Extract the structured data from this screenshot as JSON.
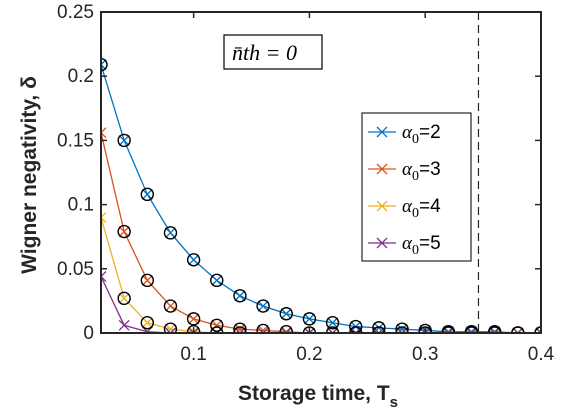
{
  "chart_data": {
    "type": "line",
    "xlabel": "Storage time, T",
    "xlabel_subscript": "s",
    "ylabel": "Wigner negativity, δ",
    "xlim": [
      0.02,
      0.4
    ],
    "ylim": [
      0,
      0.25
    ],
    "xticks": [
      0.1,
      0.2,
      0.3,
      0.4
    ],
    "xtick_labels": [
      "0.1",
      "0.2",
      "0.3",
      "0.4"
    ],
    "yticks": [
      0,
      0.05,
      0.1,
      0.15,
      0.2,
      0.25
    ],
    "ytick_labels": [
      "0",
      "0.05",
      "0.1",
      "0.15",
      "0.2",
      "0.25"
    ],
    "grid": false,
    "legend_position": "right",
    "annotation": "n̄th = 0",
    "vline_x": 0.346,
    "x": [
      0.02,
      0.04,
      0.06,
      0.08,
      0.1,
      0.12,
      0.14,
      0.16,
      0.18,
      0.2,
      0.22,
      0.24,
      0.26,
      0.28,
      0.3,
      0.32,
      0.34,
      0.36,
      0.38,
      0.4
    ],
    "series": [
      {
        "name": "α0=2",
        "label_main": "α",
        "label_sub": "0",
        "label_rest": "=2",
        "color": "#0072BD",
        "values": [
          0.209,
          0.15,
          0.108,
          0.078,
          0.057,
          0.041,
          0.029,
          0.021,
          0.015,
          0.011,
          0.008,
          0.005,
          0.004,
          0.003,
          0.002,
          0.001,
          0.001,
          0.001,
          0.0,
          0.0
        ]
      },
      {
        "name": "α0=3",
        "label_main": "α",
        "label_sub": "0",
        "label_rest": "=3",
        "color": "#D95319",
        "values": [
          0.156,
          0.079,
          0.041,
          0.021,
          0.011,
          0.006,
          0.003,
          0.002,
          0.001,
          0.0,
          0.0,
          0.0,
          0.0,
          0.0,
          0.0,
          0.0,
          0.0,
          0.0,
          0.0,
          0.0
        ]
      },
      {
        "name": "α0=4",
        "label_main": "α",
        "label_sub": "0",
        "label_rest": "=4",
        "color": "#EDB120",
        "values": [
          0.09,
          0.027,
          0.008,
          0.003,
          0.001,
          0.0,
          0.0,
          0.0,
          0.0,
          0.0,
          0.0,
          0.0,
          0.0,
          0.0,
          0.0,
          0.0,
          0.0,
          0.0,
          0.0,
          0.0
        ]
      },
      {
        "name": "α0=5",
        "label_main": "α",
        "label_sub": "0",
        "label_rest": "=5",
        "color": "#7E2F8E",
        "values": [
          0.044,
          0.006,
          0.001,
          0.0,
          0.0,
          0.0,
          0.0,
          0.0,
          0.0,
          0.0,
          0.0,
          0.0,
          0.0,
          0.0,
          0.0,
          0.0,
          0.0,
          0.0,
          0.0,
          0.0
        ]
      }
    ],
    "circle_markers": [
      {
        "x": [
          0.02,
          0.04,
          0.06,
          0.08,
          0.1,
          0.12,
          0.14,
          0.16,
          0.18,
          0.2,
          0.22,
          0.24,
          0.26,
          0.28,
          0.3,
          0.32,
          0.34,
          0.36,
          0.38,
          0.4
        ],
        "values": [
          0.209,
          0.15,
          0.108,
          0.078,
          0.057,
          0.041,
          0.029,
          0.021,
          0.015,
          0.011,
          0.008,
          0.005,
          0.004,
          0.003,
          0.002,
          0.001,
          0.001,
          0.001,
          0.0,
          0.0
        ]
      },
      {
        "x": [
          0.04,
          0.06,
          0.08,
          0.1,
          0.12,
          0.14,
          0.16,
          0.18,
          0.2,
          0.22,
          0.24,
          0.26,
          0.28,
          0.3,
          0.32,
          0.34,
          0.36,
          0.38,
          0.4
        ],
        "values": [
          0.079,
          0.041,
          0.021,
          0.011,
          0.006,
          0.003,
          0.002,
          0.001,
          0.0,
          0.0,
          0.0,
          0.0,
          0.0,
          0.0,
          0.0,
          0.0,
          0.0,
          0.0,
          0.0
        ]
      },
      {
        "x": [
          0.04,
          0.06,
          0.08,
          0.1,
          0.12,
          0.14
        ],
        "values": [
          0.027,
          0.008,
          0.003,
          0.001,
          0.0,
          0.0
        ]
      }
    ]
  }
}
